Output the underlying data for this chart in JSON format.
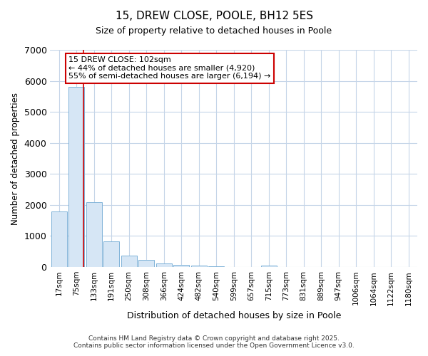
{
  "title": "15, DREW CLOSE, POOLE, BH12 5ES",
  "subtitle": "Size of property relative to detached houses in Poole",
  "xlabel": "Distribution of detached houses by size in Poole",
  "ylabel": "Number of detached properties",
  "categories": [
    "17sqm",
    "75sqm",
    "133sqm",
    "191sqm",
    "250sqm",
    "308sqm",
    "366sqm",
    "424sqm",
    "482sqm",
    "540sqm",
    "599sqm",
    "657sqm",
    "715sqm",
    "773sqm",
    "831sqm",
    "889sqm",
    "947sqm",
    "1006sqm",
    "1064sqm",
    "1122sqm",
    "1180sqm"
  ],
  "values": [
    1800,
    5800,
    2080,
    830,
    360,
    230,
    110,
    80,
    55,
    35,
    0,
    0,
    45,
    0,
    0,
    0,
    0,
    0,
    0,
    0,
    0
  ],
  "bar_color": "#d6e6f5",
  "bar_edge_color": "#7fb3d9",
  "background_color": "#ffffff",
  "plot_bg_color": "#ffffff",
  "grid_color": "#c5d5e8",
  "red_line_x": 1.42,
  "annotation_text": "15 DREW CLOSE: 102sqm\n← 44% of detached houses are smaller (4,920)\n55% of semi-detached houses are larger (6,194) →",
  "annotation_box_color": "#ffffff",
  "annotation_border_color": "#cc0000",
  "ylim": [
    0,
    7000
  ],
  "yticks": [
    0,
    1000,
    2000,
    3000,
    4000,
    5000,
    6000,
    7000
  ],
  "footer_line1": "Contains HM Land Registry data © Crown copyright and database right 2025.",
  "footer_line2": "Contains public sector information licensed under the Open Government Licence v3.0."
}
